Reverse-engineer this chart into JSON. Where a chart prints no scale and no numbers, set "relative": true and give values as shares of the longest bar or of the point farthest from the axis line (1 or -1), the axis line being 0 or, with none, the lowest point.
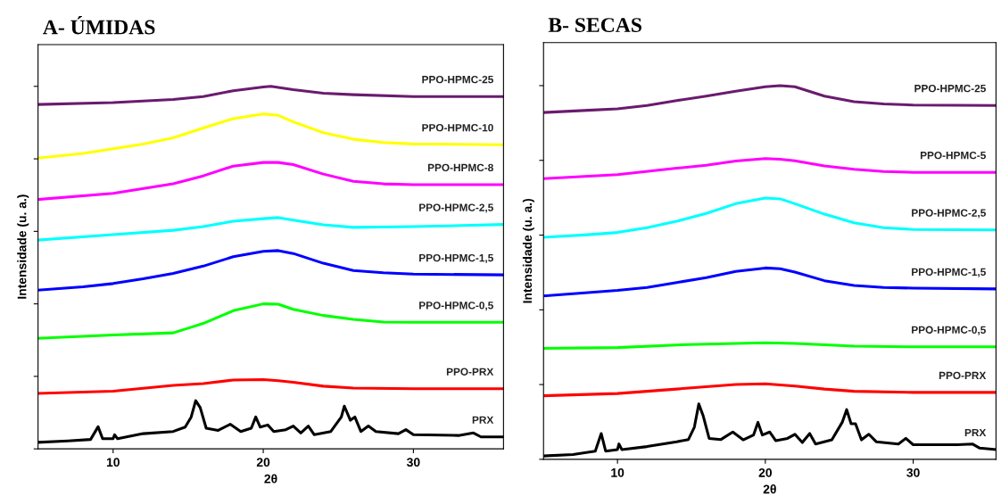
{
  "chart_data": [
    {
      "type": "line",
      "title": "A- ÚMIDAS",
      "xlabel": "2θ",
      "ylabel": "Intensidade (u. a.)",
      "relative": true,
      "xlim": [
        5,
        36
      ],
      "xticks": [
        10,
        20,
        30
      ],
      "tick_labels": "x",
      "grid": false,
      "legend": false,
      "line_style": "solid",
      "marker": "none",
      "series": [
        {
          "name": "PPO-HPMC-25",
          "color": "#6a1b6e",
          "x": [
            5,
            10,
            14,
            16,
            18,
            20,
            20.5,
            22,
            24,
            26,
            30,
            36
          ],
          "values": [
            0.95,
            0.955,
            0.964,
            0.972,
            0.988,
            0.998,
            1.0,
            0.991,
            0.981,
            0.977,
            0.972,
            0.972
          ]
        },
        {
          "name": "PPO-HPMC-10",
          "color": "#ffff00",
          "x": [
            5,
            8,
            10,
            12,
            14,
            16,
            18,
            20,
            21,
            22,
            24,
            26,
            28,
            30,
            36
          ],
          "values": [
            0.802,
            0.815,
            0.828,
            0.841,
            0.858,
            0.885,
            0.911,
            0.924,
            0.92,
            0.902,
            0.872,
            0.854,
            0.845,
            0.841,
            0.839
          ]
        },
        {
          "name": "PPO-HPMC-8",
          "color": "#ff00ff",
          "x": [
            5,
            10,
            14,
            16,
            18,
            20,
            21,
            22,
            24,
            26,
            28,
            30,
            36
          ],
          "values": [
            0.688,
            0.705,
            0.731,
            0.753,
            0.78,
            0.79,
            0.79,
            0.784,
            0.758,
            0.738,
            0.731,
            0.729,
            0.729
          ]
        },
        {
          "name": "PPO-HPMC-2,5",
          "color": "#00ffff",
          "x": [
            5,
            10,
            14,
            16,
            18,
            20,
            21,
            22,
            24,
            26,
            30,
            36
          ],
          "values": [
            0.576,
            0.591,
            0.603,
            0.613,
            0.628,
            0.635,
            0.638,
            0.631,
            0.618,
            0.611,
            0.613,
            0.619
          ]
        },
        {
          "name": "PPO-HPMC-1,5",
          "color": "#0000ff",
          "x": [
            5,
            8,
            10,
            12,
            14,
            16,
            18,
            20,
            21,
            22,
            24,
            26,
            28,
            30,
            36
          ],
          "values": [
            0.438,
            0.447,
            0.456,
            0.469,
            0.484,
            0.504,
            0.53,
            0.545,
            0.547,
            0.539,
            0.512,
            0.492,
            0.486,
            0.482,
            0.48
          ]
        },
        {
          "name": "PPO-HPMC-0,5",
          "color": "#00ff00",
          "x": [
            5,
            10,
            14,
            15,
            16,
            18,
            20,
            21,
            22,
            24,
            26,
            28,
            30,
            36
          ],
          "values": [
            0.305,
            0.314,
            0.32,
            0.333,
            0.346,
            0.381,
            0.4,
            0.399,
            0.385,
            0.368,
            0.357,
            0.35,
            0.349,
            0.349
          ]
        },
        {
          "name": "PPO-PRX",
          "color": "#ff0000",
          "x": [
            5,
            10,
            14,
            16,
            18,
            20,
            21,
            22,
            24,
            26,
            30,
            36
          ],
          "values": [
            0.153,
            0.159,
            0.175,
            0.18,
            0.19,
            0.191,
            0.188,
            0.184,
            0.173,
            0.168,
            0.166,
            0.166
          ]
        },
        {
          "name": "PRX",
          "color": "#000000",
          "x": [
            5,
            7,
            8.5,
            9,
            9.3,
            10,
            10.1,
            10.3,
            12,
            14,
            14.8,
            15.2,
            15.5,
            15.8,
            16.2,
            17,
            17.8,
            18.5,
            19.2,
            19.5,
            19.8,
            20.3,
            20.7,
            21.5,
            22,
            22.5,
            23,
            23.4,
            24.5,
            25.2,
            25.4,
            25.8,
            26.1,
            26.5,
            27,
            27.5,
            29,
            29.5,
            30,
            33,
            34,
            34.5,
            36
          ],
          "values": [
            0.018,
            0.022,
            0.026,
            0.061,
            0.028,
            0.028,
            0.039,
            0.028,
            0.042,
            0.048,
            0.06,
            0.088,
            0.133,
            0.114,
            0.057,
            0.051,
            0.068,
            0.048,
            0.057,
            0.088,
            0.06,
            0.066,
            0.048,
            0.053,
            0.063,
            0.044,
            0.063,
            0.039,
            0.048,
            0.088,
            0.118,
            0.079,
            0.088,
            0.048,
            0.063,
            0.048,
            0.042,
            0.053,
            0.039,
            0.037,
            0.044,
            0.033,
            0.033
          ]
        }
      ]
    },
    {
      "type": "line",
      "title": "B- SECAS",
      "xlabel": "2θ",
      "ylabel": "Intensidade (u. a.)",
      "relative": true,
      "xlim": [
        5,
        35.6
      ],
      "xticks": [
        10,
        20,
        30
      ],
      "tick_labels": "x",
      "grid": false,
      "legend": false,
      "line_style": "solid",
      "marker": "none",
      "series": [
        {
          "name": "PPO-HPMC-25",
          "color": "#6a1b6e",
          "x": [
            5,
            8,
            10,
            12,
            14,
            16,
            18,
            20,
            21,
            22,
            24,
            26,
            28,
            30,
            35.6
          ],
          "values": [
            0.928,
            0.934,
            0.938,
            0.947,
            0.96,
            0.972,
            0.985,
            0.997,
            1.0,
            0.997,
            0.972,
            0.957,
            0.951,
            0.948,
            0.947
          ]
        },
        {
          "name": "PPO-HPMC-5",
          "color": "#ff00ff",
          "x": [
            5,
            10,
            14,
            16,
            18,
            20,
            21,
            22,
            24,
            26,
            28,
            30,
            35.6
          ],
          "values": [
            0.751,
            0.762,
            0.779,
            0.787,
            0.798,
            0.805,
            0.803,
            0.799,
            0.785,
            0.776,
            0.77,
            0.768,
            0.768
          ]
        },
        {
          "name": "PPO-HPMC-2,5",
          "color": "#00ffff",
          "x": [
            5,
            8,
            10,
            12,
            14,
            16,
            18,
            20,
            21,
            22,
            24,
            26,
            28,
            30,
            35.6
          ],
          "values": [
            0.594,
            0.601,
            0.607,
            0.62,
            0.637,
            0.658,
            0.684,
            0.699,
            0.697,
            0.684,
            0.656,
            0.633,
            0.62,
            0.615,
            0.614
          ]
        },
        {
          "name": "PPO-HPMC-1,5",
          "color": "#0000ff",
          "x": [
            5,
            8,
            10,
            12,
            14,
            16,
            18,
            20,
            21,
            22,
            24,
            26,
            28,
            30,
            35.6
          ],
          "values": [
            0.437,
            0.446,
            0.452,
            0.46,
            0.473,
            0.486,
            0.503,
            0.512,
            0.51,
            0.501,
            0.478,
            0.465,
            0.46,
            0.458,
            0.456
          ]
        },
        {
          "name": "PPO-HPMC-0,5",
          "color": "#00ff00",
          "x": [
            5,
            10,
            14,
            18,
            20,
            22,
            26,
            30,
            35.6
          ],
          "values": [
            0.297,
            0.299,
            0.306,
            0.31,
            0.312,
            0.31,
            0.303,
            0.301,
            0.301
          ]
        },
        {
          "name": "PPO-PRX",
          "color": "#ff0000",
          "x": [
            5,
            10,
            14,
            16,
            18,
            20,
            22,
            24,
            26,
            30,
            35.6
          ],
          "values": [
            0.17,
            0.176,
            0.188,
            0.194,
            0.2,
            0.202,
            0.196,
            0.188,
            0.182,
            0.179,
            0.179
          ]
        },
        {
          "name": "PRX",
          "color": "#000000",
          "x": [
            5,
            7,
            8.5,
            8.9,
            9.2,
            10,
            10.1,
            10.3,
            12,
            14,
            14.8,
            15.2,
            15.5,
            15.8,
            16.2,
            17,
            17.8,
            18.5,
            19.2,
            19.5,
            19.8,
            20.3,
            20.7,
            21.5,
            22,
            22.5,
            23,
            23.4,
            24.5,
            25.2,
            25.5,
            25.8,
            26.1,
            26.5,
            27,
            27.5,
            29,
            29.5,
            30,
            33,
            34,
            34.5,
            35.6
          ],
          "values": [
            0.009,
            0.013,
            0.022,
            0.069,
            0.022,
            0.026,
            0.041,
            0.026,
            0.034,
            0.047,
            0.053,
            0.086,
            0.148,
            0.116,
            0.056,
            0.053,
            0.073,
            0.052,
            0.065,
            0.099,
            0.065,
            0.073,
            0.05,
            0.056,
            0.067,
            0.045,
            0.069,
            0.041,
            0.052,
            0.099,
            0.133,
            0.095,
            0.095,
            0.052,
            0.067,
            0.047,
            0.041,
            0.056,
            0.039,
            0.039,
            0.041,
            0.03,
            0.026
          ]
        }
      ]
    }
  ]
}
